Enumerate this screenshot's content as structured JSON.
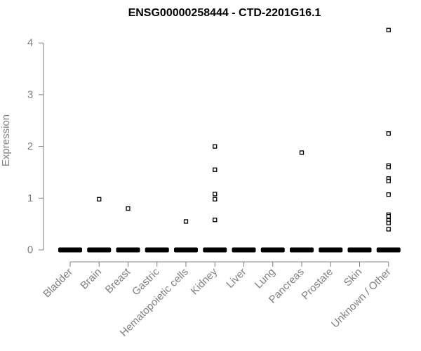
{
  "chart_data": {
    "type": "scatter",
    "title": "ENSG00000258444 - CTD-2201G16.1",
    "ylabel": "Expression",
    "xlabel": "",
    "ylim": [
      0,
      4.3
    ],
    "yticks": [
      0,
      1,
      2,
      3,
      4
    ],
    "categories": [
      "Bladder",
      "Brain",
      "Breast",
      "Gastric",
      "Hematopoietic cells",
      "Kidney",
      "Liver",
      "Lung",
      "Pancreas",
      "Prostate",
      "Skin",
      "Unknown / Other"
    ],
    "points": [
      {
        "category": "Brain",
        "values": [
          0.98
        ]
      },
      {
        "category": "Breast",
        "values": [
          0.8
        ]
      },
      {
        "category": "Hematopoietic cells",
        "values": [
          0.55
        ]
      },
      {
        "category": "Kidney",
        "values": [
          2.0,
          1.55,
          1.08,
          0.98,
          0.58
        ]
      },
      {
        "category": "Pancreas",
        "values": [
          1.88
        ]
      },
      {
        "category": "Unknown / Other",
        "values": [
          4.25,
          2.25,
          1.63,
          1.6,
          1.38,
          1.33,
          1.07,
          0.68,
          0.65,
          0.57,
          0.52,
          0.4
        ]
      }
    ],
    "zero_values_in_all_categories": true,
    "grid": false,
    "legend": "none",
    "colors": {
      "points": "#000000",
      "axis": "#808080",
      "title": "#000000"
    }
  }
}
